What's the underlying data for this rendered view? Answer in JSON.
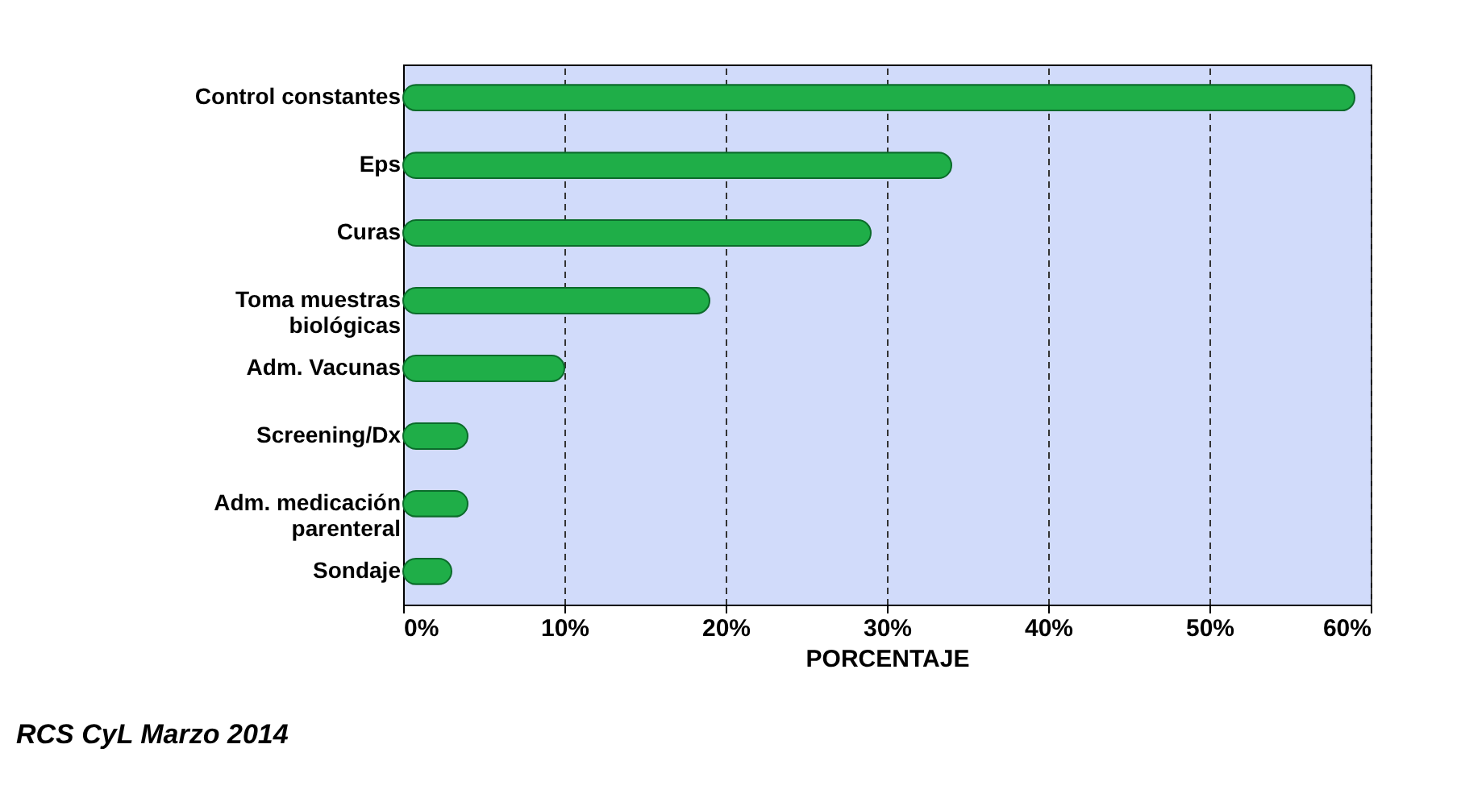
{
  "chart_data": {
    "type": "bar",
    "orientation": "horizontal",
    "xlabel": "PORCENTAJE",
    "categories": [
      "Control constantes",
      "Eps",
      "Curas",
      "Toma muestras biológicas",
      "Adm. Vacunas",
      "Screening/Dx",
      "Adm. medicación parenteral",
      "Sondaje"
    ],
    "values": [
      59,
      34,
      29,
      19,
      10,
      4,
      4,
      3
    ],
    "color": "#1fae48",
    "xlim": [
      0,
      60
    ],
    "xticks": [
      {
        "value": 0,
        "label": "0%"
      },
      {
        "value": 10,
        "label": "10%"
      },
      {
        "value": 20,
        "label": "20%"
      },
      {
        "value": 30,
        "label": "30%"
      },
      {
        "value": 40,
        "label": "40%"
      },
      {
        "value": 50,
        "label": "50%"
      },
      {
        "value": 60,
        "label": "60%"
      }
    ],
    "grid": "x",
    "annotations": [
      "RCS CyL Marzo 2014"
    ]
  }
}
